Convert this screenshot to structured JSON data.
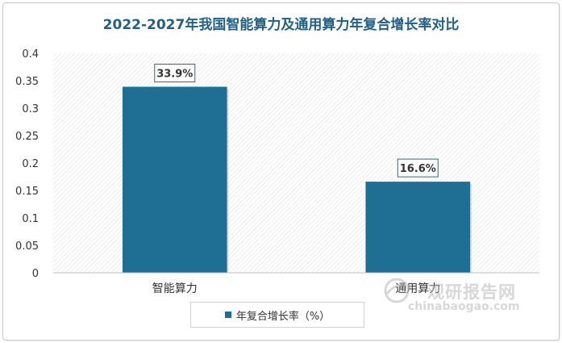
{
  "chart_data": {
    "type": "bar",
    "title": "2022-2027年我国智能算力及通用算力年复合增长率对比",
    "categories": [
      "智能算力",
      "通用算力"
    ],
    "series": [
      {
        "name": "年复合增长率（%）",
        "values": [
          0.339,
          0.166
        ],
        "data_labels": [
          "33.9%",
          "16.6%"
        ]
      }
    ],
    "ylim": [
      0,
      0.4
    ],
    "yticks": [
      "0",
      "0.05",
      "0.1",
      "0.15",
      "0.2",
      "0.25",
      "0.3",
      "0.35",
      "0.4"
    ],
    "xlabel": "",
    "ylabel": "",
    "grid": false,
    "legend": "bottom-center",
    "colors": {
      "bar": "#1f6e93",
      "title": "#1f5f88",
      "label_border": "#1f6e93"
    }
  },
  "watermark": {
    "name": "观研报告网",
    "url": "chinabaogao.com"
  }
}
